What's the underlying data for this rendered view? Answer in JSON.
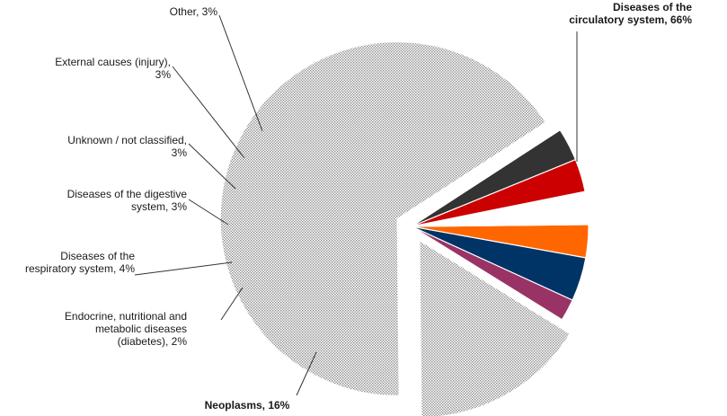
{
  "chart_data": {
    "type": "pie",
    "title": "",
    "slices": [
      {
        "label": "Diseases of the circulatory system, 66%",
        "lines": [
          "Diseases of the",
          "circulatory system, 66%"
        ],
        "value": 66,
        "color": "#d9d9d9",
        "pattern": "dots",
        "bold": true,
        "exploded": true
      },
      {
        "label": "Neoplasms, 16%",
        "lines": [
          "Neoplasms, 16%"
        ],
        "value": 16,
        "color": "#d9d9d9",
        "pattern": "dots",
        "bold": true,
        "exploded": true
      },
      {
        "label": "Endocrine, nutritional and metabolic diseases (diabetes), 2%",
        "lines": [
          "Endocrine, nutritional and",
          "metabolic diseases",
          "(diabetes), 2%"
        ],
        "value": 2,
        "color": "#993366",
        "pattern": "solid",
        "bold": false,
        "exploded": false
      },
      {
        "label": "Diseases of the respiratory system, 4%",
        "lines": [
          "Diseases of the",
          "respiratory system, 4%"
        ],
        "value": 4,
        "color": "#003366",
        "pattern": "solid",
        "bold": false,
        "exploded": false
      },
      {
        "label": "Diseases of the digestive system, 3%",
        "lines": [
          "Diseases of the digestive",
          "system, 3%"
        ],
        "value": 3,
        "color": "#ff6600",
        "pattern": "solid",
        "bold": false,
        "exploded": false
      },
      {
        "label": "Unknown / not classified, 3%",
        "lines": [
          "Unknown / not classified,",
          "3%"
        ],
        "value": 3,
        "color": "#ffffff",
        "pattern": "solid",
        "bold": false,
        "exploded": false
      },
      {
        "label": "External causes (injury), 3%",
        "lines": [
          "External causes (injury),",
          "3%"
        ],
        "value": 3,
        "color": "#cc0000",
        "pattern": "solid",
        "bold": false,
        "exploded": false
      },
      {
        "label": "Other, 3%",
        "lines": [
          "Other, 3%"
        ],
        "value": 3,
        "color": "#333333",
        "pattern": "solid",
        "bold": false,
        "exploded": false
      }
    ]
  }
}
